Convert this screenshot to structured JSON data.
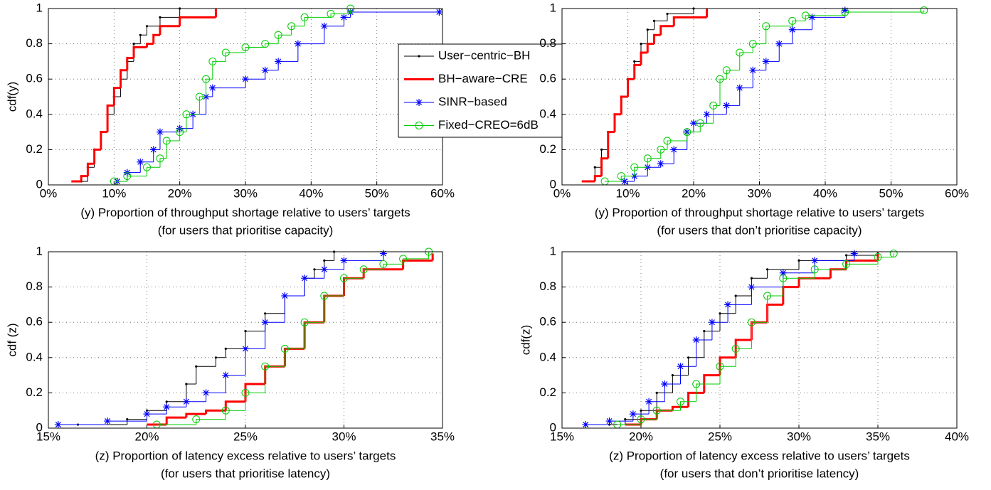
{
  "chart_data": [
    {
      "type": "line",
      "xlabel": [
        "(y) Proportion of throughput shortage relative to users’ targets",
        "(for users that prioritise capacity)"
      ],
      "ylabel": "cdf(y)",
      "xlim": [
        0,
        60
      ],
      "ylim": [
        0,
        1
      ],
      "xticks": [
        {
          "value": 0,
          "label": "0%"
        },
        {
          "value": 10,
          "label": "10%"
        },
        {
          "value": 20,
          "label": "20%"
        },
        {
          "value": 30,
          "label": "30%"
        },
        {
          "value": 40,
          "label": "40%"
        },
        {
          "value": 50,
          "label": "50%"
        },
        {
          "value": 60,
          "label": "60%"
        }
      ],
      "yticks": [
        0,
        0.2,
        0.4,
        0.6,
        0.8,
        1
      ],
      "grid": true,
      "legend": "northeast",
      "series": [
        {
          "name": "User−centric−BH",
          "color": "#000000",
          "marker": "dot",
          "x": [
            5,
            6,
            7,
            8,
            9,
            10,
            11,
            12,
            13,
            14,
            15,
            17,
            20
          ],
          "values": [
            0.02,
            0.1,
            0.2,
            0.3,
            0.4,
            0.5,
            0.6,
            0.7,
            0.8,
            0.85,
            0.9,
            0.95,
            1
          ]
        },
        {
          "name": "BH−aware−CRE",
          "color": "#ff0000",
          "marker": "none",
          "x": [
            3.5,
            5,
            6,
            7,
            8,
            9,
            10,
            11,
            12,
            13,
            15,
            16,
            17,
            20,
            25.5
          ],
          "values": [
            0.02,
            0.05,
            0.12,
            0.2,
            0.3,
            0.45,
            0.55,
            0.65,
            0.72,
            0.78,
            0.8,
            0.85,
            0.9,
            0.95,
            1
          ]
        },
        {
          "name": "SINR−based",
          "color": "#0000ff",
          "marker": "star",
          "x": [
            10.5,
            12,
            14,
            16,
            17,
            20,
            22,
            24,
            25,
            30,
            33,
            35,
            38,
            42,
            45,
            46,
            59.5
          ],
          "values": [
            0.02,
            0.07,
            0.13,
            0.2,
            0.3,
            0.32,
            0.4,
            0.5,
            0.55,
            0.6,
            0.65,
            0.7,
            0.8,
            0.9,
            0.95,
            0.98,
            0.98
          ]
        },
        {
          "name": "Fixed−CREO=6dB",
          "color": "#00cc00",
          "marker": "circle",
          "x": [
            10,
            12,
            15,
            17,
            18,
            20,
            21,
            23,
            24,
            25,
            27,
            30,
            33,
            35,
            37,
            39,
            43,
            46
          ],
          "values": [
            0.02,
            0.05,
            0.1,
            0.15,
            0.25,
            0.3,
            0.4,
            0.5,
            0.6,
            0.7,
            0.75,
            0.78,
            0.8,
            0.85,
            0.9,
            0.95,
            0.97,
            1
          ]
        }
      ]
    },
    {
      "type": "line",
      "xlabel": [
        "(y) Proportion of throughput shortage relative to users’ targets",
        "(for users that don’t prioritise capacity)"
      ],
      "xlim": [
        0,
        60
      ],
      "ylim": [
        0,
        1
      ],
      "xticks": [
        {
          "value": 0,
          "label": "0%"
        },
        {
          "value": 10,
          "label": "10%"
        },
        {
          "value": 20,
          "label": "20%"
        },
        {
          "value": 30,
          "label": "30%"
        },
        {
          "value": 40,
          "label": "40%"
        },
        {
          "value": 50,
          "label": "50%"
        },
        {
          "value": 60,
          "label": "60%"
        }
      ],
      "yticks": [
        0,
        0.2,
        0.4,
        0.6,
        0.8,
        1
      ],
      "grid": true,
      "series": [
        {
          "color": "#000000",
          "marker": "dot",
          "x": [
            4,
            5,
            6,
            7,
            8,
            9,
            10,
            11,
            12,
            13,
            14,
            16,
            20
          ],
          "values": [
            0.02,
            0.1,
            0.2,
            0.3,
            0.4,
            0.5,
            0.6,
            0.7,
            0.8,
            0.88,
            0.93,
            0.97,
            1
          ]
        },
        {
          "color": "#ff0000",
          "marker": "none",
          "x": [
            3,
            5,
            6,
            7,
            8,
            9,
            10,
            11,
            12,
            13,
            14,
            15,
            17,
            22
          ],
          "values": [
            0.02,
            0.05,
            0.15,
            0.3,
            0.4,
            0.5,
            0.6,
            0.68,
            0.75,
            0.8,
            0.85,
            0.9,
            0.95,
            1
          ]
        },
        {
          "color": "#0000ff",
          "marker": "star",
          "x": [
            9.5,
            11,
            13,
            15,
            17,
            19,
            20,
            22,
            25,
            27,
            29,
            31,
            33,
            35,
            38,
            43
          ],
          "values": [
            0.02,
            0.05,
            0.1,
            0.12,
            0.2,
            0.3,
            0.35,
            0.4,
            0.45,
            0.55,
            0.65,
            0.7,
            0.8,
            0.88,
            0.95,
            0.99
          ]
        },
        {
          "color": "#00cc00",
          "marker": "circle",
          "x": [
            6.5,
            9,
            11,
            13,
            15,
            16,
            19,
            21,
            23,
            24,
            25,
            27,
            29,
            31,
            35,
            37,
            43,
            55
          ],
          "values": [
            0.02,
            0.05,
            0.1,
            0.15,
            0.2,
            0.25,
            0.3,
            0.35,
            0.45,
            0.6,
            0.65,
            0.75,
            0.8,
            0.9,
            0.93,
            0.96,
            0.98,
            0.99
          ]
        }
      ]
    },
    {
      "type": "line",
      "xlabel": [
        "(z) Proportion of latency excess relative to users’ targets",
        "(for users that prioritise latency)"
      ],
      "ylabel": "cdf (z)",
      "xlim": [
        15,
        35
      ],
      "ylim": [
        0,
        1
      ],
      "xticks": [
        {
          "value": 15,
          "label": "15%"
        },
        {
          "value": 20,
          "label": "20%"
        },
        {
          "value": 25,
          "label": "25%"
        },
        {
          "value": 30,
          "label": "30%"
        },
        {
          "value": 35,
          "label": "35%"
        }
      ],
      "yticks": [
        0,
        0.2,
        0.4,
        0.6,
        0.8,
        1
      ],
      "grid": true,
      "series": [
        {
          "color": "#000000",
          "marker": "dot",
          "x": [
            16.5,
            19,
            20,
            21,
            22,
            22.5,
            23.5,
            24,
            25,
            26,
            27,
            28,
            28.5,
            29,
            29.5
          ],
          "values": [
            0.02,
            0.05,
            0.1,
            0.15,
            0.25,
            0.35,
            0.4,
            0.45,
            0.55,
            0.65,
            0.75,
            0.85,
            0.9,
            0.95,
            1
          ]
        },
        {
          "color": "#ff0000",
          "marker": "none",
          "x": [
            20,
            21,
            22,
            23,
            24,
            25,
            26,
            27,
            28,
            29,
            30,
            31,
            33,
            34.5
          ],
          "values": [
            0.02,
            0.06,
            0.08,
            0.1,
            0.15,
            0.25,
            0.35,
            0.45,
            0.6,
            0.75,
            0.85,
            0.9,
            0.95,
            0.99
          ]
        },
        {
          "color": "#0000ff",
          "marker": "star",
          "x": [
            15.5,
            18,
            20,
            21,
            22,
            23,
            24,
            25,
            26,
            27,
            28,
            29,
            30,
            32
          ],
          "values": [
            0.02,
            0.04,
            0.08,
            0.12,
            0.15,
            0.2,
            0.3,
            0.45,
            0.6,
            0.75,
            0.85,
            0.9,
            0.95,
            0.99
          ]
        },
        {
          "color": "#00cc00",
          "marker": "circle",
          "x": [
            20.5,
            22.5,
            24,
            25,
            26,
            27,
            28,
            29,
            30,
            31,
            32,
            33,
            34.3
          ],
          "values": [
            0.02,
            0.05,
            0.1,
            0.2,
            0.35,
            0.45,
            0.6,
            0.75,
            0.85,
            0.9,
            0.93,
            0.96,
            1
          ]
        }
      ]
    },
    {
      "type": "line",
      "xlabel": [
        "(z) Proportion of latency excess relative to users’ targets",
        "(for users that don’t prioritise latency)"
      ],
      "ylabel": "cdf(z)",
      "xlim": [
        15,
        40
      ],
      "ylim": [
        0,
        1
      ],
      "xticks": [
        {
          "value": 15,
          "label": "15%"
        },
        {
          "value": 20,
          "label": "20%"
        },
        {
          "value": 25,
          "label": "25%"
        },
        {
          "value": 30,
          "label": "30%"
        },
        {
          "value": 35,
          "label": "35%"
        },
        {
          "value": 40,
          "label": "40%"
        }
      ],
      "yticks": [
        0,
        0.2,
        0.4,
        0.6,
        0.8,
        1
      ],
      "grid": true,
      "series": [
        {
          "color": "#000000",
          "marker": "dot",
          "x": [
            18,
            19,
            20,
            21,
            22,
            23,
            24,
            25,
            26,
            27,
            28,
            30,
            33,
            35
          ],
          "values": [
            0.02,
            0.05,
            0.1,
            0.2,
            0.3,
            0.4,
            0.55,
            0.65,
            0.75,
            0.85,
            0.9,
            0.95,
            0.98,
            0.99
          ]
        },
        {
          "color": "#ff0000",
          "marker": "none",
          "x": [
            19,
            20,
            21,
            22,
            23,
            24,
            25,
            26,
            27,
            28,
            29,
            30,
            32,
            33,
            35
          ],
          "values": [
            0.02,
            0.05,
            0.1,
            0.12,
            0.2,
            0.3,
            0.4,
            0.5,
            0.6,
            0.7,
            0.8,
            0.85,
            0.9,
            0.95,
            0.99
          ]
        },
        {
          "color": "#0000ff",
          "marker": "star",
          "x": [
            16.5,
            18,
            19.5,
            20.5,
            21.5,
            22.5,
            23.5,
            24.5,
            25.5,
            27,
            29,
            31,
            33.5
          ],
          "values": [
            0.02,
            0.04,
            0.08,
            0.15,
            0.25,
            0.35,
            0.5,
            0.6,
            0.7,
            0.8,
            0.88,
            0.95,
            0.99
          ]
        },
        {
          "color": "#00cc00",
          "marker": "circle",
          "x": [
            18.5,
            20,
            21,
            22.5,
            23.5,
            25,
            26,
            27,
            28,
            29,
            31,
            33,
            35,
            36
          ],
          "values": [
            0.02,
            0.05,
            0.1,
            0.15,
            0.25,
            0.35,
            0.45,
            0.6,
            0.75,
            0.85,
            0.9,
            0.93,
            0.97,
            0.99
          ]
        }
      ]
    }
  ]
}
